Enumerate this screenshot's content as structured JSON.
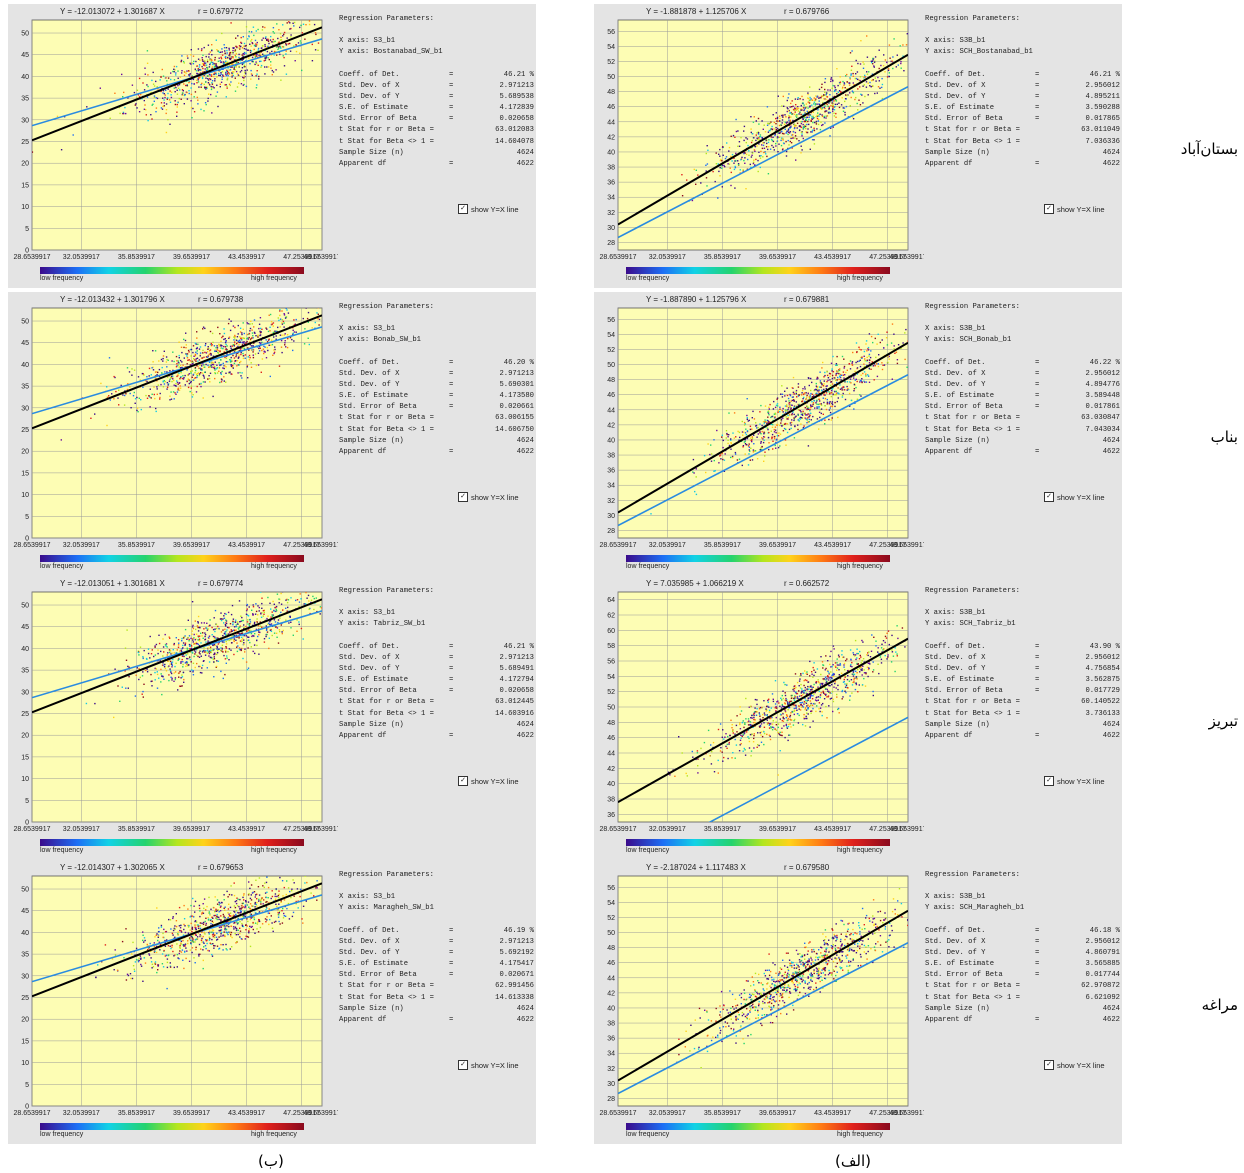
{
  "labels": {
    "regression_title": "Regression Parameters:",
    "show_yx": "show Y=X line",
    "low_freq": "low frequency",
    "high_freq": "high frequency",
    "stat_labels": [
      "Coeff. of Det.",
      "Std. Dev. of X",
      "Std. Dev. of Y",
      "S.E. of Estimate",
      "Std. Error of Beta",
      "t Stat for r or Beta =",
      "t Stat for Beta <> 1 =",
      "Sample Size (n)",
      "Apparent df"
    ],
    "stat_eq": [
      "=",
      "=",
      "=",
      "=",
      "=",
      "",
      "",
      "",
      "="
    ]
  },
  "captions": {
    "left": "(ب)",
    "right": "(الف)"
  },
  "rows": [
    {
      "city": "بستان‌آباد",
      "left": {
        "eq": "Y = -12.013072 + 1.301687 X",
        "r": "r = 0.679772",
        "xaxis": "X axis: S3_b1",
        "yaxis": "Y axis: Bostanabad_SW_b1",
        "stats": [
          "46.21 %",
          "2.971213",
          "5.689538",
          "4.172839",
          "0.020658",
          "63.012083",
          "14.604078",
          "4624",
          "4622"
        ]
      },
      "right": {
        "eq": "Y = -1.881878 + 1.125706 X",
        "r": "r = 0.679766",
        "xaxis": "X axis: S3B_b1",
        "yaxis": "Y axis: SCH_Bostanabad_b1",
        "stats": [
          "46.21 %",
          "2.956012",
          "4.895211",
          "3.590288",
          "0.017865",
          "63.011049",
          "7.036336",
          "4624",
          "4622"
        ]
      }
    },
    {
      "city": "بناب",
      "left": {
        "eq": "Y = -12.013432 + 1.301796 X",
        "r": "r = 0.679738",
        "xaxis": "X axis: S3_b1",
        "yaxis": "Y axis: Bonab_SW_b1",
        "stats": [
          "46.20 %",
          "2.971213",
          "5.690301",
          "4.173580",
          "0.020661",
          "63.006155",
          "14.606750",
          "4624",
          "4622"
        ]
      },
      "right": {
        "eq": "Y = -1.887890 + 1.125796 X",
        "r": "r = 0.679881",
        "xaxis": "X axis: S3B_b1",
        "yaxis": "Y axis: SCH_Bonab_b1",
        "stats": [
          "46.22 %",
          "2.956012",
          "4.894776",
          "3.589448",
          "0.017861",
          "63.030847",
          "7.043034",
          "4624",
          "4622"
        ]
      }
    },
    {
      "city": "تبریز",
      "left": {
        "eq": "Y = -12.013051 + 1.301681 X",
        "r": "r = 0.679774",
        "xaxis": "X axis: S3_b1",
        "yaxis": "Y axis: Tabriz_SW_b1",
        "stats": [
          "46.21 %",
          "2.971213",
          "5.689491",
          "4.172794",
          "0.020658",
          "63.012445",
          "14.603916",
          "4624",
          "4622"
        ]
      },
      "right": {
        "eq": "Y = 7.035985 + 1.066219 X",
        "r": "r = 0.662572",
        "xaxis": "X axis: S3B_b1",
        "yaxis": "Y axis: SCH_Tabriz_b1",
        "stats": [
          "43.90 %",
          "2.956012",
          "4.756854",
          "3.562875",
          "0.017729",
          "60.140522",
          "3.736133",
          "4624",
          "4622"
        ]
      }
    },
    {
      "city": "مراغه",
      "left": {
        "eq": "Y = -12.014307 + 1.302065 X",
        "r": "r = 0.679653",
        "xaxis": "X axis: S3_b1",
        "yaxis": "Y axis: Maragheh_SW_b1",
        "stats": [
          "46.19 %",
          "2.971213",
          "5.692192",
          "4.175417",
          "0.020671",
          "62.991456",
          "14.613338",
          "4624",
          "4622"
        ]
      },
      "right": {
        "eq": "Y = -2.187024 + 1.117483 X",
        "r": "r = 0.679580",
        "xaxis": "X axis: S3B_b1",
        "yaxis": "Y axis: SCH_Maragheh_b1",
        "stats": [
          "46.18 %",
          "2.956012",
          "4.860791",
          "3.565885",
          "0.017744",
          "62.970872",
          "6.621092",
          "4624",
          "4622"
        ]
      }
    }
  ],
  "chart_data": [
    {
      "type": "scatter",
      "panel": "left",
      "x_ticks": [
        "28.6539917",
        "32.0539917",
        "35.8539917",
        "39.6539917",
        "43.4539917",
        "47.2539917",
        "48.6539917"
      ],
      "y_ticks": [
        0,
        5,
        10,
        15,
        20,
        25,
        30,
        35,
        40,
        45,
        50
      ],
      "ylim": [
        0,
        53
      ],
      "fit_intercept": -12.013,
      "fit_slope": 1.3017,
      "grid": true,
      "colors": {
        "plot_bg": "#fdfdb4",
        "fit": "#000000",
        "identity": "#2a8be0"
      }
    },
    {
      "type": "scatter",
      "panel": "right",
      "x_ticks": [
        "28.6539917",
        "32.0539917",
        "35.8539917",
        "39.6539917",
        "43.4539917",
        "47.2539917",
        "48.6539917"
      ],
      "y_ticks": [
        28,
        30,
        32,
        34,
        36,
        38,
        40,
        42,
        44,
        46,
        48,
        50,
        52,
        54,
        56
      ],
      "ylim": [
        27,
        57.5
      ],
      "fit_intercept": -1.88,
      "fit_slope": 1.1257,
      "grid": true,
      "colors": {
        "plot_bg": "#fdfdb4",
        "fit": "#000000",
        "identity": "#2a8be0"
      }
    },
    {
      "type": "scatter",
      "panel": "right-tabriz",
      "x_ticks": [
        "28.6539917",
        "32.0539917",
        "35.8539917",
        "39.6539917",
        "43.4539917",
        "47.2539917",
        "48.6539917"
      ],
      "y_ticks": [
        36,
        38,
        40,
        42,
        44,
        46,
        48,
        50,
        52,
        54,
        56,
        58,
        60,
        62,
        64
      ],
      "ylim": [
        35,
        65
      ],
      "fit_intercept": 7.036,
      "fit_slope": 1.0662,
      "grid": true,
      "colors": {
        "plot_bg": "#fdfdb4",
        "fit": "#000000",
        "identity": "#2a8be0"
      }
    }
  ]
}
